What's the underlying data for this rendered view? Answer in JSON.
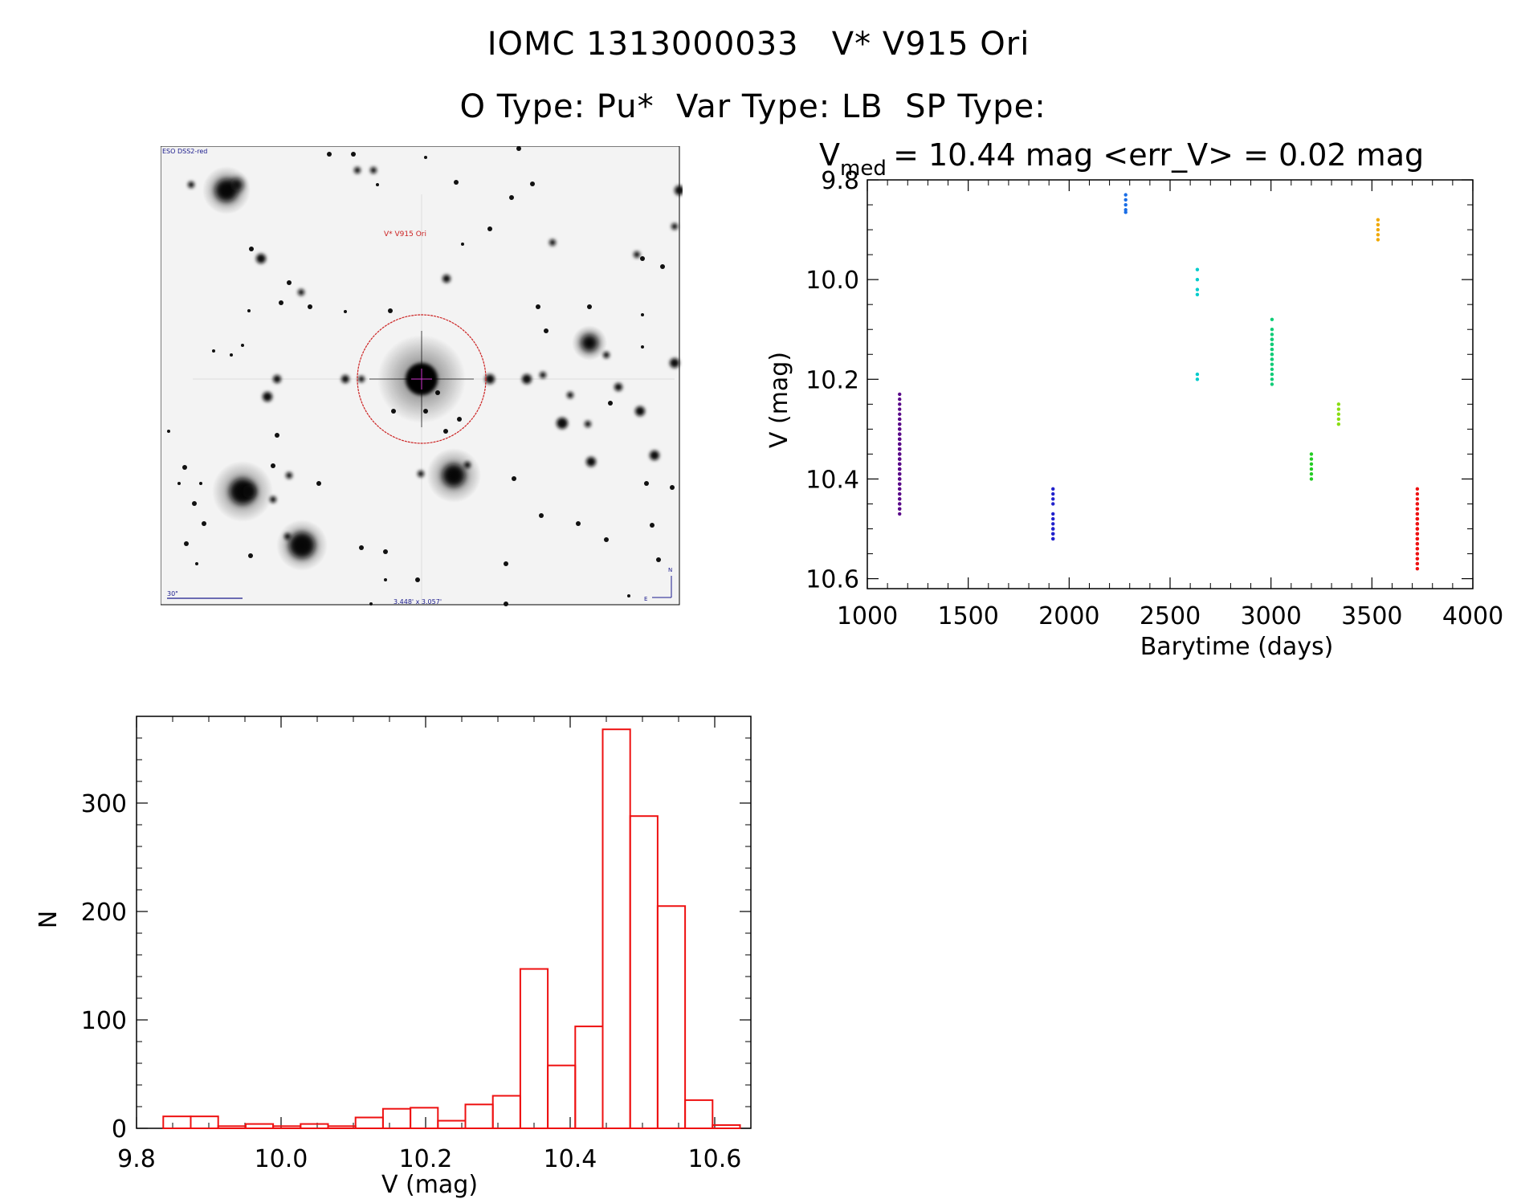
{
  "header": {
    "title_line1": "IOMC 1313000033   V* V915 Ori",
    "title_line2": "O Type: Pu*  Var Type: LB  SP Type: "
  },
  "image_panel": {
    "survey_label": "ESO DSS2-red",
    "target_label": "V* V915 Ori",
    "scale_label": "30\"",
    "fov_label": "3.448' x 3.057'",
    "north_label": "N",
    "east_label": "E",
    "colors": {
      "background": "#f2f2f2",
      "star": "#111111",
      "circle": "#cc2222",
      "label": "#1a1a8c",
      "target": "#cc2222"
    }
  },
  "chart_data": [
    {
      "type": "scatter",
      "title_main": "V",
      "title_sub": "med",
      "title_rest": " = 10.44 mag <err_V> = 0.02 mag",
      "xlabel": "Barytime (days)",
      "ylabel": "V (mag)",
      "xlim": [
        1000,
        4000
      ],
      "ylim": [
        10.62,
        9.8
      ],
      "xticks": [
        1000,
        1500,
        2000,
        2500,
        3000,
        3500,
        4000
      ],
      "yticks": [
        9.8,
        10.0,
        10.2,
        10.4,
        10.6
      ],
      "ytick_labels": [
        "9.8",
        "10.0",
        "10.2",
        "10.4",
        "10.6"
      ],
      "series": [
        {
          "name": "season-1",
          "color": "#5a0a8a",
          "x": [
            1160,
            1160,
            1160,
            1160,
            1160,
            1160,
            1160,
            1160,
            1160,
            1160,
            1160,
            1160,
            1160,
            1160,
            1160,
            1160,
            1160,
            1160,
            1160,
            1160,
            1160,
            1160,
            1160,
            1160,
            1160,
            1160,
            1160,
            1160,
            1160,
            1160,
            1160,
            1160,
            1160,
            1160,
            1160,
            1160,
            1160,
            1160,
            1160,
            1160,
            1160,
            1160,
            1160,
            1160,
            1160,
            1160,
            1160,
            1160,
            1160,
            1160,
            1160,
            1160,
            1160,
            1160,
            1160,
            1160,
            1160,
            1160,
            1160,
            1160,
            1160,
            1160,
            1160,
            1160,
            1160,
            1160,
            1160,
            1160,
            1160,
            1160,
            1160
          ],
          "y": [
            10.23,
            10.24,
            10.25,
            10.26,
            10.27,
            10.28,
            10.28,
            10.29,
            10.29,
            10.3,
            10.3,
            10.3,
            10.31,
            10.31,
            10.31,
            10.31,
            10.32,
            10.32,
            10.32,
            10.32,
            10.33,
            10.33,
            10.33,
            10.33,
            10.34,
            10.34,
            10.34,
            10.34,
            10.35,
            10.35,
            10.35,
            10.35,
            10.36,
            10.36,
            10.36,
            10.36,
            10.37,
            10.37,
            10.37,
            10.37,
            10.38,
            10.38,
            10.38,
            10.38,
            10.39,
            10.39,
            10.39,
            10.4,
            10.4,
            10.4,
            10.41,
            10.41,
            10.41,
            10.42,
            10.42,
            10.43,
            10.43,
            10.44,
            10.44,
            10.45,
            10.45,
            10.46,
            10.46,
            10.47,
            10.38,
            10.34,
            10.36,
            10.32,
            10.4,
            10.35,
            10.37
          ]
        },
        {
          "name": "season-2",
          "color": "#2222cc",
          "x": [
            1920,
            1920,
            1920,
            1920,
            1920,
            1920,
            1920,
            1920,
            1920,
            1920,
            1920,
            1920,
            1920
          ],
          "y": [
            10.42,
            10.43,
            10.44,
            10.45,
            10.47,
            10.48,
            10.49,
            10.5,
            10.5,
            10.51,
            10.51,
            10.52,
            10.52
          ]
        },
        {
          "name": "season-3",
          "color": "#1a6ee6",
          "x": [
            2280,
            2280,
            2280,
            2280,
            2280
          ],
          "y": [
            9.83,
            9.84,
            9.85,
            9.86,
            9.865
          ]
        },
        {
          "name": "season-4",
          "color": "#00cccc",
          "x": [
            2635,
            2635,
            2635,
            2635,
            2635,
            2635
          ],
          "y": [
            9.98,
            10.0,
            10.02,
            10.03,
            10.19,
            10.2
          ]
        },
        {
          "name": "season-5",
          "color": "#11cc77",
          "x": [
            3005,
            3005,
            3005,
            3005,
            3005,
            3005,
            3005,
            3005,
            3005,
            3005,
            3005,
            3005,
            3005,
            3005,
            3005,
            3005,
            3005,
            3005
          ],
          "y": [
            10.08,
            10.1,
            10.11,
            10.12,
            10.12,
            10.13,
            10.13,
            10.14,
            10.14,
            10.15,
            10.15,
            10.16,
            10.16,
            10.17,
            10.18,
            10.19,
            10.2,
            10.21
          ]
        },
        {
          "name": "season-6",
          "color": "#22cc22",
          "x": [
            3200,
            3200,
            3200,
            3200,
            3200,
            3200
          ],
          "y": [
            10.35,
            10.36,
            10.37,
            10.38,
            10.39,
            10.4
          ]
        },
        {
          "name": "season-7",
          "color": "#88dd11",
          "x": [
            3335,
            3335,
            3335,
            3335,
            3335
          ],
          "y": [
            10.25,
            10.26,
            10.27,
            10.28,
            10.29
          ]
        },
        {
          "name": "season-8",
          "color": "#f0a800",
          "x": [
            3530,
            3530,
            3530,
            3530,
            3530
          ],
          "y": [
            9.88,
            9.89,
            9.9,
            9.91,
            9.92
          ]
        },
        {
          "name": "season-9",
          "color": "#ee1111",
          "x": [
            3725,
            3725,
            3725,
            3725,
            3725,
            3725,
            3725,
            3725,
            3725,
            3725,
            3725,
            3725,
            3725,
            3725,
            3725,
            3725,
            3725,
            3725,
            3725,
            3725,
            3725,
            3725,
            3725,
            3725,
            3725,
            3725,
            3725,
            3725,
            3725,
            3725,
            3725,
            3725,
            3725,
            3725,
            3725
          ],
          "y": [
            10.42,
            10.43,
            10.44,
            10.45,
            10.45,
            10.46,
            10.46,
            10.47,
            10.47,
            10.48,
            10.48,
            10.48,
            10.49,
            10.49,
            10.49,
            10.5,
            10.5,
            10.5,
            10.51,
            10.51,
            10.51,
            10.52,
            10.52,
            10.52,
            10.53,
            10.53,
            10.54,
            10.54,
            10.55,
            10.55,
            10.56,
            10.56,
            10.57,
            10.57,
            10.58
          ]
        }
      ]
    },
    {
      "type": "bar",
      "subtype": "histogram",
      "xlabel": "V (mag)",
      "ylabel": "N",
      "xlim": [
        9.8,
        10.65
      ],
      "ylim": [
        0,
        380
      ],
      "xticks": [
        9.8,
        10.0,
        10.2,
        10.4,
        10.6
      ],
      "xtick_labels": [
        "9.8",
        "10.0",
        "10.2",
        "10.4",
        "10.6"
      ],
      "yticks": [
        0,
        100,
        200,
        300
      ],
      "bin_width": 0.038,
      "bin_start": 9.837,
      "values": [
        11,
        11,
        2,
        4,
        2,
        4,
        2,
        10,
        18,
        19,
        7,
        22,
        30,
        147,
        58,
        94,
        368,
        288,
        205,
        26,
        3
      ],
      "color": "#ee1111"
    }
  ]
}
